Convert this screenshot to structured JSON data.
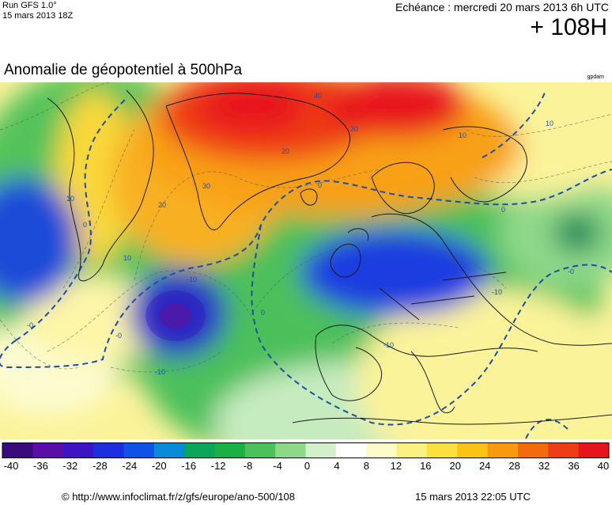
{
  "header": {
    "run_label": "Run GFS 1.0°",
    "run_date": "15 mars 2013 18Z",
    "echeance": "Echéance : mercredi 20 mars 2013 6h UTC",
    "lead_time": "+ 108H"
  },
  "title": "Anomalie de géopotentiel à 500hPa",
  "credit": "gpdam",
  "map": {
    "contour_labels": [
      "40",
      "30",
      "30",
      "20",
      "10",
      "10",
      "0",
      "0",
      "0",
      "0",
      "-0",
      "-0",
      "-10",
      "-10",
      "-10",
      "-10",
      "10",
      "10",
      "20",
      "-0"
    ],
    "colors": {
      "zero_contour": "#1e4ea8",
      "land_outline": "#1a1a1a",
      "ocean_neutral": "#ffffff"
    }
  },
  "colorbar": {
    "ticks": [
      "-40",
      "-36",
      "-32",
      "-28",
      "-24",
      "-20",
      "-16",
      "-12",
      "-8",
      "-4",
      "0",
      "4",
      "8",
      "12",
      "16",
      "20",
      "24",
      "28",
      "32",
      "36",
      "40"
    ],
    "colors": [
      "#3a0b7a",
      "#5a0ea6",
      "#3c14c4",
      "#1c2ee0",
      "#0f52e8",
      "#0b8ad8",
      "#0aa65a",
      "#1ab046",
      "#4cc05a",
      "#8ed88a",
      "#d2f0cc",
      "#ffffff",
      "#fdfcc8",
      "#fbf080",
      "#fbe040",
      "#f9c414",
      "#f89a10",
      "#f46a0e",
      "#ee3c14",
      "#e8141c"
    ]
  },
  "footer": {
    "url": "© http://www.infoclimat.fr/z/gfs/europe/ano-500/108",
    "timestamp": "15 mars 2013 22:05 UTC"
  }
}
